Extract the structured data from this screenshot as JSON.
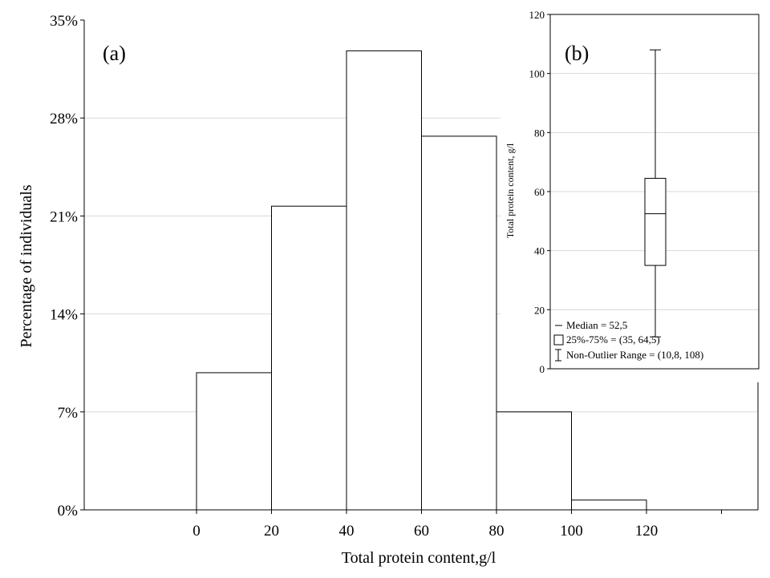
{
  "chart_data": [
    {
      "type": "bar",
      "panel_label": "(a)",
      "xlabel": "Total protein content,g/l",
      "ylabel": "Percentage of individuals",
      "x_ticks": [
        "0",
        "20",
        "40",
        "60",
        "80",
        "100",
        "120"
      ],
      "y_ticks": [
        "0%",
        "7%",
        "14%",
        "21%",
        "28%",
        "35%"
      ],
      "ylim": [
        0,
        35
      ],
      "bins": [
        {
          "from": 0,
          "to": 20,
          "value": 9.8
        },
        {
          "from": 20,
          "to": 40,
          "value": 21.7
        },
        {
          "from": 40,
          "to": 60,
          "value": 32.8
        },
        {
          "from": 60,
          "to": 80,
          "value": 26.7
        },
        {
          "from": 80,
          "to": 100,
          "value": 7.0
        },
        {
          "from": 100,
          "to": 120,
          "value": 0.7
        }
      ],
      "grid": "horizontal"
    },
    {
      "type": "box",
      "panel_label": "(b)",
      "ylabel": "Total protein content, g/l",
      "y_ticks": [
        "0",
        "20",
        "40",
        "60",
        "80",
        "100",
        "120"
      ],
      "ylim": [
        0,
        120
      ],
      "median": 52.5,
      "q1": 35,
      "q3": 64.5,
      "whisker_low": 10.8,
      "whisker_high": 108,
      "legend": [
        {
          "symbol": "line",
          "label": "Median = 52,5"
        },
        {
          "symbol": "box",
          "label": "25%-75%     = (35, 64,5)"
        },
        {
          "symbol": "whisker",
          "label": "Non-Outlier Range    = (10,8, 108)"
        }
      ],
      "grid": "horizontal"
    }
  ]
}
